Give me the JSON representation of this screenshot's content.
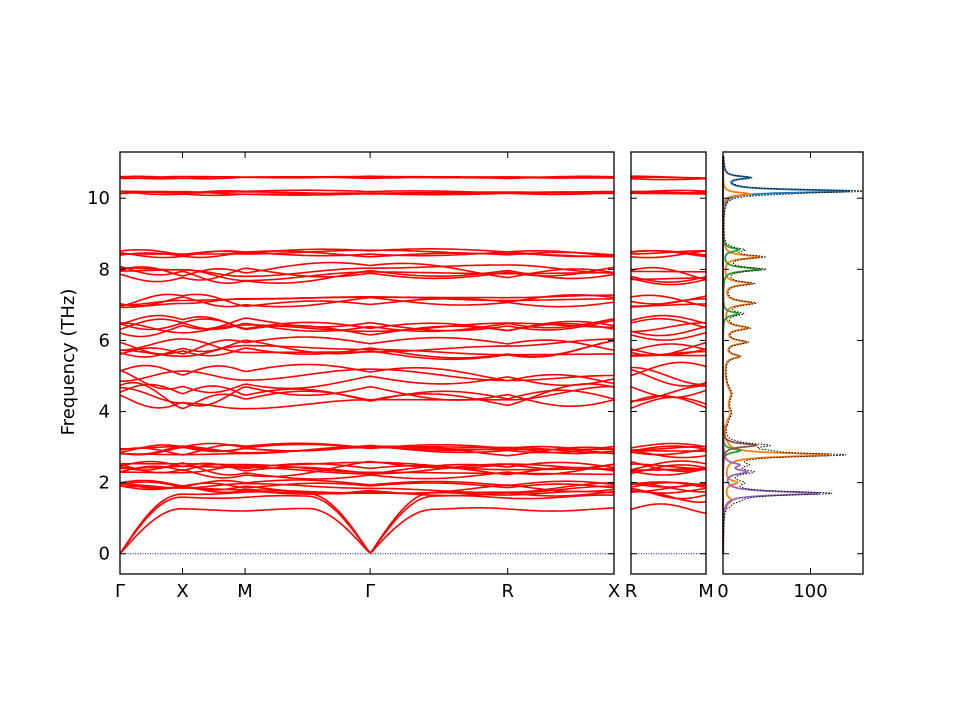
{
  "chart_data": {
    "type": "line",
    "ylabel": "Frequency (THz)",
    "ylim": [
      -0.57,
      11.3
    ],
    "y_ticks": [
      0,
      2,
      4,
      6,
      8,
      10
    ],
    "panels": [
      {
        "name": "band-structure-main",
        "x_ticks": [
          "Γ",
          "X",
          "M",
          "Γ",
          "R",
          "X"
        ],
        "segment_lengths": [
          0.5,
          0.5,
          1.0,
          1.1,
          0.85
        ],
        "color": "#ff0000"
      },
      {
        "name": "band-structure-rm",
        "x_ticks": [
          "R",
          "M"
        ],
        "segment_lengths": [
          1.0
        ],
        "color": "#ff0000"
      }
    ],
    "zero_line_color": "#0000ff",
    "dos": {
      "xlim": [
        0,
        160
      ],
      "x_ticks": [
        0,
        100
      ],
      "x_tick_labels": [
        "0",
        "100"
      ],
      "total_color": "#000000",
      "partial_colors": [
        "#1f77b4",
        "#ff7f0e",
        "#2ca02c",
        "#d62728",
        "#9467bd",
        "#8c564b"
      ],
      "peaks": [
        {
          "f": 10.58,
          "h": 28,
          "w": 0.05,
          "c": 0
        },
        {
          "f": 10.2,
          "h": 145,
          "w": 0.05,
          "c": 0
        },
        {
          "f": 10.12,
          "h": 30,
          "w": 0.05,
          "c": 1
        },
        {
          "f": 8.55,
          "h": 18,
          "w": 0.06,
          "c": 2
        },
        {
          "f": 8.35,
          "h": 40,
          "w": 0.06,
          "c": 1
        },
        {
          "f": 8.0,
          "h": 42,
          "w": 0.06,
          "c": 2
        },
        {
          "f": 7.6,
          "h": 30,
          "w": 0.06,
          "c": 1
        },
        {
          "f": 7.05,
          "h": 32,
          "w": 0.07,
          "c": 1
        },
        {
          "f": 6.75,
          "h": 18,
          "w": 0.06,
          "c": 2
        },
        {
          "f": 6.35,
          "h": 26,
          "w": 0.07,
          "c": 1
        },
        {
          "f": 5.95,
          "h": 24,
          "w": 0.07,
          "c": 1
        },
        {
          "f": 5.55,
          "h": 16,
          "w": 0.07,
          "c": 1
        },
        {
          "f": 4.5,
          "h": 7,
          "w": 0.25,
          "c": 1
        },
        {
          "f": 3.95,
          "h": 6,
          "w": 0.2,
          "c": 1
        },
        {
          "f": 3.05,
          "h": 38,
          "w": 0.06,
          "c": 5
        },
        {
          "f": 2.9,
          "h": 20,
          "w": 0.06,
          "c": 2
        },
        {
          "f": 2.78,
          "h": 120,
          "w": 0.06,
          "c": 1
        },
        {
          "f": 2.5,
          "h": 16,
          "w": 0.07,
          "c": 4
        },
        {
          "f": 2.3,
          "h": 25,
          "w": 0.07,
          "c": 4
        },
        {
          "f": 2.0,
          "h": 14,
          "w": 0.07,
          "c": 1
        },
        {
          "f": 1.7,
          "h": 110,
          "w": 0.06,
          "c": 4
        },
        {
          "f": 1.5,
          "h": 8,
          "w": 0.1,
          "c": 1
        }
      ]
    }
  }
}
